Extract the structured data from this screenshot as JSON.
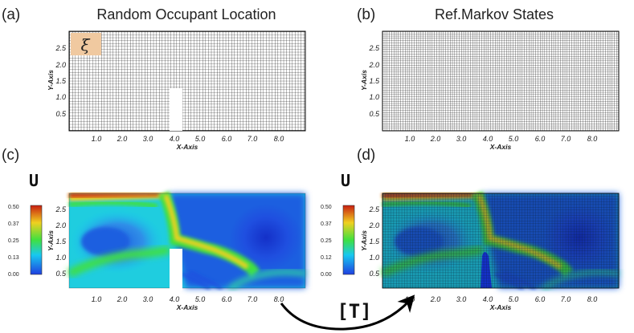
{
  "panels": [
    {
      "id": "a",
      "label": "(a)",
      "title": "Random Occupant Location",
      "type": "mesh-with-obstacle",
      "badge": "ξ"
    },
    {
      "id": "b",
      "label": "(b)",
      "title": "Ref.Markov States",
      "type": "mesh"
    },
    {
      "id": "c",
      "label": "(c)",
      "title": "",
      "type": "contour",
      "field_label": "U",
      "colorbar_ticks": [
        "0.50",
        "0.37",
        "0.25",
        "0.13",
        "0.00"
      ]
    },
    {
      "id": "d",
      "label": "(d)",
      "title": "",
      "type": "contour-mesh",
      "field_label": "U",
      "colorbar_ticks": [
        "0.50",
        "0.37",
        "0.25",
        "0.12",
        "0.00"
      ]
    }
  ],
  "axes": {
    "xlabel": "X-Axis",
    "ylabel": "Y-Axis",
    "xticks": [
      "1.0",
      "2.0",
      "3.0",
      "4.0",
      "5.0",
      "6.0",
      "7.0",
      "8.0"
    ],
    "yticks": [
      "0.5",
      "1.0",
      "1.5",
      "2.0",
      "2.5"
    ]
  },
  "arrow_label": "[T]",
  "colors": {
    "high": "#c81e10",
    "mid_high": "#f0d020",
    "mid": "#40e040",
    "mid_low": "#18c8f0",
    "low": "#1f5fe0",
    "badge_bg": "#f0c9a0",
    "grid": "#000000"
  }
}
